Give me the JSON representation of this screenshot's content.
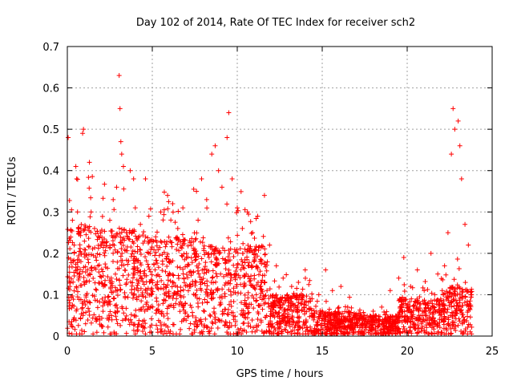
{
  "chart_data": {
    "type": "scatter",
    "title": "Day 102 of 2014, Rate Of TEC Index for receiver sch2",
    "xlabel": "GPS time / hours",
    "ylabel": "ROTI / TECUs",
    "xlim": [
      0,
      25
    ],
    "ylim": [
      0,
      0.7
    ],
    "xticks": [
      0,
      5,
      10,
      15,
      20,
      25
    ],
    "yticks": [
      0,
      0.1,
      0.2,
      0.3,
      0.4,
      0.5,
      0.6,
      0.7
    ],
    "xtick_labels": [
      "0",
      "5",
      "10",
      "15",
      "20",
      "25"
    ],
    "ytick_labels": [
      "0",
      "0.1",
      "0.2",
      "0.3",
      "0.4",
      "0.5",
      "0.6",
      "0.7"
    ],
    "grid": true,
    "legend": false,
    "marker": "+",
    "color": "#ff0000",
    "series": [
      {
        "points": [
          [
            0.05,
            0.48
          ],
          [
            0.15,
            0.12
          ],
          [
            0.3,
            0.28
          ],
          [
            0.4,
            0.22
          ],
          [
            0.5,
            0.41
          ],
          [
            0.55,
            0.38
          ],
          [
            0.6,
            0.3
          ],
          [
            0.7,
            0.25
          ],
          [
            0.8,
            0.18
          ],
          [
            0.9,
            0.49
          ],
          [
            0.95,
            0.5
          ],
          [
            1.0,
            0.2
          ],
          [
            1.1,
            0.13
          ],
          [
            1.3,
            0.42
          ],
          [
            1.4,
            0.3
          ],
          [
            1.6,
            0.26
          ],
          [
            1.8,
            0.17
          ],
          [
            2.0,
            0.22
          ],
          [
            2.2,
            0.08
          ],
          [
            2.5,
            0.28
          ],
          [
            2.7,
            0.33
          ],
          [
            2.9,
            0.36
          ],
          [
            3.05,
            0.63
          ],
          [
            3.1,
            0.55
          ],
          [
            3.15,
            0.47
          ],
          [
            3.2,
            0.44
          ],
          [
            3.3,
            0.41
          ],
          [
            3.5,
            0.25
          ],
          [
            3.7,
            0.4
          ],
          [
            3.9,
            0.38
          ],
          [
            4.0,
            0.31
          ],
          [
            4.3,
            0.27
          ],
          [
            4.6,
            0.38
          ],
          [
            4.8,
            0.29
          ],
          [
            5.2,
            0.24
          ],
          [
            5.5,
            0.3
          ],
          [
            5.9,
            0.34
          ],
          [
            6.2,
            0.32
          ],
          [
            6.5,
            0.26
          ],
          [
            6.8,
            0.31
          ],
          [
            7.2,
            0.23
          ],
          [
            7.6,
            0.35
          ],
          [
            7.9,
            0.38
          ],
          [
            8.2,
            0.33
          ],
          [
            8.5,
            0.44
          ],
          [
            8.7,
            0.46
          ],
          [
            8.9,
            0.4
          ],
          [
            9.1,
            0.36
          ],
          [
            9.4,
            0.48
          ],
          [
            9.5,
            0.54
          ],
          [
            9.7,
            0.38
          ],
          [
            10.0,
            0.31
          ],
          [
            10.3,
            0.26
          ],
          [
            10.6,
            0.3
          ],
          [
            10.9,
            0.25
          ],
          [
            11.2,
            0.29
          ],
          [
            11.6,
            0.34
          ],
          [
            11.9,
            0.22
          ],
          [
            12.3,
            0.17
          ],
          [
            12.7,
            0.14
          ],
          [
            13.2,
            0.12
          ],
          [
            13.6,
            0.13
          ],
          [
            14.0,
            0.16
          ],
          [
            14.4,
            0.09
          ],
          [
            14.8,
            0.1
          ],
          [
            15.2,
            0.16
          ],
          [
            15.6,
            0.11
          ],
          [
            16.1,
            0.12
          ],
          [
            16.5,
            0.07
          ],
          [
            17.0,
            0.04
          ],
          [
            17.5,
            0.05
          ],
          [
            18.0,
            0.06
          ],
          [
            18.5,
            0.07
          ],
          [
            19.0,
            0.11
          ],
          [
            19.5,
            0.14
          ],
          [
            19.8,
            0.19
          ],
          [
            20.2,
            0.12
          ],
          [
            20.6,
            0.16
          ],
          [
            21.0,
            0.11
          ],
          [
            21.4,
            0.2
          ],
          [
            21.8,
            0.15
          ],
          [
            22.2,
            0.17
          ],
          [
            22.4,
            0.25
          ],
          [
            22.6,
            0.44
          ],
          [
            22.7,
            0.55
          ],
          [
            22.8,
            0.5
          ],
          [
            23.0,
            0.52
          ],
          [
            23.1,
            0.46
          ],
          [
            23.2,
            0.38
          ],
          [
            23.4,
            0.27
          ],
          [
            23.6,
            0.22
          ]
        ]
      }
    ],
    "point_density_note": ""
  }
}
